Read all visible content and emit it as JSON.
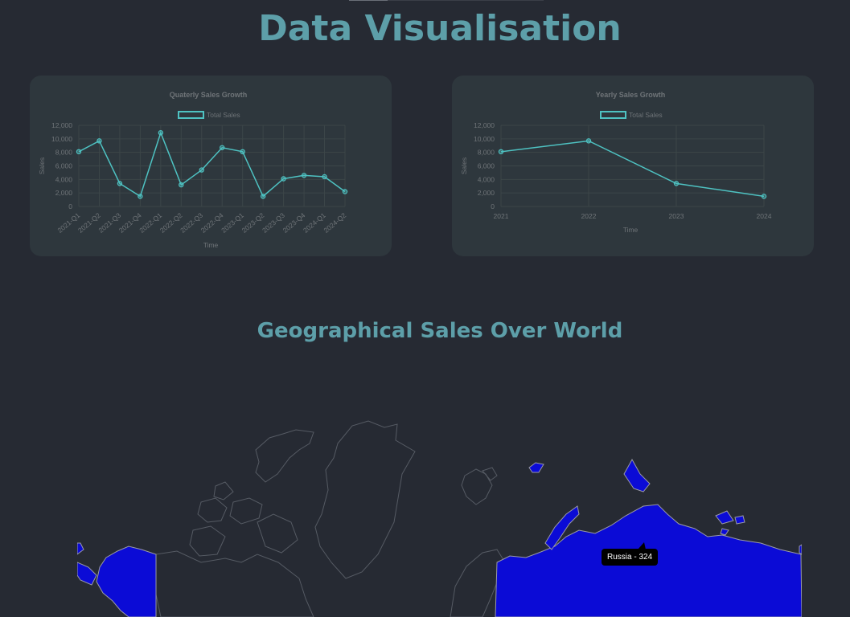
{
  "page": {
    "title": "Data Visualisation"
  },
  "geo": {
    "title": "Geographical Sales Over World",
    "tooltip": "Russia - 324",
    "country_fill": "#0b0bd6",
    "country_outline": "#9a9aa8",
    "land_outline": "#565b64"
  },
  "colors": {
    "line": "#4ec2c2",
    "text": "#6f7478",
    "grid": "#3c4648",
    "card": "#2e373d"
  },
  "chart_data": [
    {
      "type": "line",
      "title": "Quaterly Sales Growth",
      "legend": "Total Sales",
      "xlabel": "Time",
      "ylabel": "Sales",
      "ylim": [
        0,
        12000
      ],
      "yticks": [
        "12,000",
        "10,000",
        "8,000",
        "6,000",
        "4,000",
        "2,000",
        "0"
      ],
      "categories": [
        "2021-Q1",
        "2021-Q2",
        "2021-Q3",
        "2021-Q4",
        "2022-Q1",
        "2022-Q2",
        "2022-Q3",
        "2022-Q4",
        "2023-Q1",
        "2023-Q2",
        "2023-Q3",
        "2023-Q4",
        "2024-Q1",
        "2024-Q2"
      ],
      "values": [
        8100,
        9700,
        3400,
        1500,
        10900,
        3200,
        5400,
        8700,
        8100,
        1500,
        4100,
        4600,
        4400,
        2200
      ]
    },
    {
      "type": "line",
      "title": "Yearly Sales Growth",
      "legend": "Total Sales",
      "xlabel": "Time",
      "ylabel": "Sales",
      "ylim": [
        0,
        12000
      ],
      "yticks": [
        "12,000",
        "10,000",
        "8,000",
        "6,000",
        "4,000",
        "2,000",
        "0"
      ],
      "categories": [
        "2021",
        "2022",
        "2023",
        "2024"
      ],
      "values": [
        8100,
        9700,
        3400,
        1500
      ]
    }
  ]
}
